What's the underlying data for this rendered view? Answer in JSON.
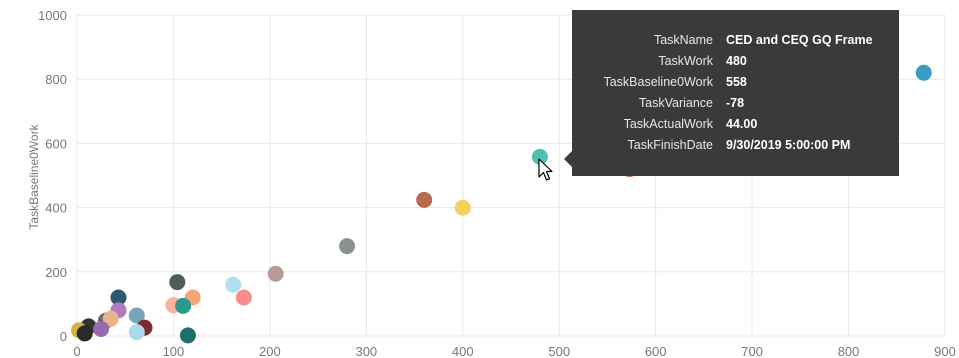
{
  "chart_data": {
    "type": "scatter",
    "xlabel": "",
    "ylabel": "TaskBaseline0Work",
    "xlim": [
      0,
      900
    ],
    "ylim": [
      0,
      1000
    ],
    "xticks": [
      0,
      100,
      200,
      300,
      400,
      500,
      600,
      700,
      800,
      900
    ],
    "yticks": [
      0,
      200,
      400,
      600,
      800,
      1000
    ],
    "grid": true,
    "points": [
      {
        "x": 878,
        "y": 820,
        "color": "#3a9bc4"
      },
      {
        "x": 480,
        "y": 558,
        "color": "#4fc1b4"
      },
      {
        "x": 573,
        "y": 520,
        "color": "#c8785a"
      },
      {
        "x": 360,
        "y": 424,
        "color": "#b9694d"
      },
      {
        "x": 400,
        "y": 400,
        "color": "#f2d15e"
      },
      {
        "x": 280,
        "y": 280,
        "color": "#8a9090"
      },
      {
        "x": 206,
        "y": 194,
        "color": "#b89a97"
      },
      {
        "x": 104,
        "y": 168,
        "color": "#4f5a5a"
      },
      {
        "x": 162,
        "y": 160,
        "color": "#aee0f2"
      },
      {
        "x": 173,
        "y": 120,
        "color": "#f78e8b"
      },
      {
        "x": 120,
        "y": 120,
        "color": "#f5a47a"
      },
      {
        "x": 43,
        "y": 120,
        "color": "#2e5a6e"
      },
      {
        "x": 100,
        "y": 96,
        "color": "#f7b39a"
      },
      {
        "x": 110,
        "y": 94,
        "color": "#2a9a8a"
      },
      {
        "x": 43,
        "y": 80,
        "color": "#b07ac2"
      },
      {
        "x": 62,
        "y": 64,
        "color": "#7aa4b8"
      },
      {
        "x": 30,
        "y": 48,
        "color": "#6f6a66"
      },
      {
        "x": 35,
        "y": 54,
        "color": "#e8b48e"
      },
      {
        "x": 12,
        "y": 30,
        "color": "#333333"
      },
      {
        "x": 70,
        "y": 26,
        "color": "#7a2e2e"
      },
      {
        "x": 25,
        "y": 22,
        "color": "#9a6ab0"
      },
      {
        "x": 62,
        "y": 12,
        "color": "#a8dced"
      },
      {
        "x": 2,
        "y": 18,
        "color": "#d4b347"
      },
      {
        "x": 8,
        "y": 8,
        "color": "#2b2b2b"
      },
      {
        "x": 115,
        "y": 2,
        "color": "#1f6e6e"
      }
    ]
  },
  "tooltip": {
    "rows": [
      {
        "key": "TaskName",
        "value": "CED and CEQ GQ Frame"
      },
      {
        "key": "TaskWork",
        "value": "480"
      },
      {
        "key": "TaskBaseline0Work",
        "value": "558"
      },
      {
        "key": "TaskVariance",
        "value": "-78"
      },
      {
        "key": "TaskActualWork",
        "value": "44.00"
      },
      {
        "key": "TaskFinishDate",
        "value": "9/30/2019 5:00:00 PM"
      }
    ]
  },
  "cursor_icon": "mouse-pointer-icon"
}
